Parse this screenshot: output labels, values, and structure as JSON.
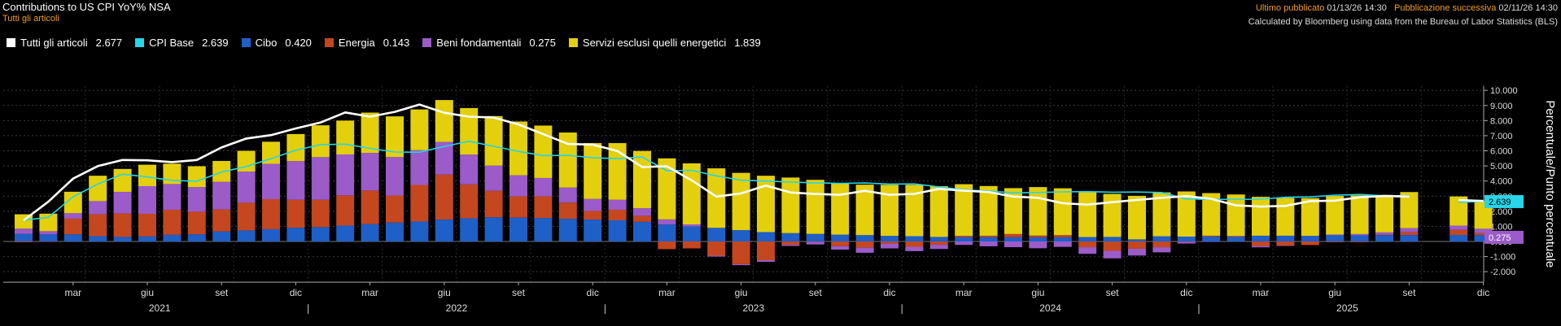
{
  "header": {
    "title": "Contributions to US CPI YoY% NSA",
    "subtitle": "Tutti gli articoli",
    "last_published_label": "Ultimo pubblicato",
    "last_published_value": "01/13/26 14:30",
    "next_publication_label": "Pubblicazione successiva",
    "next_publication_value": "02/11/26 14:30",
    "source_note": "Calculated by Bloomberg using data from the Bureau of Labor Statistics (BLS)"
  },
  "legend": [
    {
      "name": "Tutti gli articoli",
      "value": "2.677",
      "color": "#ffffff"
    },
    {
      "name": "CPI Base",
      "value": "2.639",
      "color": "#25d5e8"
    },
    {
      "name": "Cibo",
      "value": "0.420",
      "color": "#1f5fc8"
    },
    {
      "name": "Energia",
      "value": "0.143",
      "color": "#c4471f"
    },
    {
      "name": "Beni fondamentali",
      "value": "0.275",
      "color": "#9b5bc8"
    },
    {
      "name": "Servizi esclusi quelli energetici",
      "value": "1.839",
      "color": "#e3cf0c"
    }
  ],
  "chart_data": {
    "type": "bar",
    "stacked": true,
    "ylabel": "Percentuale/Punto percentuale",
    "ylim": [
      -2.7,
      10.3
    ],
    "yticks": [
      "-2.000",
      "-1.000",
      "0.000",
      "1.000",
      "2.000",
      "3.000",
      "4.000",
      "5.000",
      "6.000",
      "7.000",
      "8.000",
      "9.000",
      "10.000"
    ],
    "grid": true,
    "legend_position": "top-left",
    "x": [
      "2021-01",
      "2021-02",
      "2021-03",
      "2021-04",
      "2021-05",
      "2021-06",
      "2021-07",
      "2021-08",
      "2021-09",
      "2021-10",
      "2021-11",
      "2021-12",
      "2022-01",
      "2022-02",
      "2022-03",
      "2022-04",
      "2022-05",
      "2022-06",
      "2022-07",
      "2022-08",
      "2022-09",
      "2022-10",
      "2022-11",
      "2022-12",
      "2023-01",
      "2023-02",
      "2023-03",
      "2023-04",
      "2023-05",
      "2023-06",
      "2023-07",
      "2023-08",
      "2023-09",
      "2023-10",
      "2023-11",
      "2023-12",
      "2024-01",
      "2024-02",
      "2024-03",
      "2024-04",
      "2024-05",
      "2024-06",
      "2024-07",
      "2024-08",
      "2024-09",
      "2024-10",
      "2024-11",
      "2024-12",
      "2025-01",
      "2025-02",
      "2025-03",
      "2025-04",
      "2025-05",
      "2025-06",
      "2025-07",
      "2025-08",
      "2025-09",
      "2025-10",
      "2025-11",
      "2025-12"
    ],
    "x_tick_labels": [
      "mar",
      "giu",
      "set",
      "dic",
      "mar",
      "giu",
      "set",
      "dic",
      "mar",
      "giu",
      "set",
      "dic",
      "mar",
      "giu",
      "set",
      "dic",
      "mar",
      "giu",
      "set",
      "dic"
    ],
    "x_tick_months": [
      "2021-03",
      "2021-06",
      "2021-09",
      "2021-12",
      "2022-03",
      "2022-06",
      "2022-09",
      "2022-12",
      "2023-03",
      "2023-06",
      "2023-09",
      "2023-12",
      "2024-03",
      "2024-06",
      "2024-09",
      "2024-12",
      "2025-03",
      "2025-06",
      "2025-09",
      "2025-12"
    ],
    "year_labels": [
      "2021",
      "2022",
      "2023",
      "2024",
      "2025"
    ],
    "series": [
      {
        "name": "Cibo",
        "values": [
          0.5,
          0.47,
          0.47,
          0.35,
          0.3,
          0.33,
          0.44,
          0.47,
          0.66,
          0.73,
          0.81,
          0.91,
          0.95,
          1.05,
          1.15,
          1.25,
          1.32,
          1.45,
          1.53,
          1.6,
          1.58,
          1.55,
          1.5,
          1.45,
          1.4,
          1.3,
          1.12,
          0.99,
          0.9,
          0.75,
          0.62,
          0.55,
          0.5,
          0.45,
          0.42,
          0.37,
          0.35,
          0.3,
          0.29,
          0.29,
          0.28,
          0.28,
          0.28,
          0.29,
          0.3,
          0.14,
          0.34,
          0.32,
          0.33,
          0.31,
          0.38,
          0.38,
          0.37,
          0.41,
          0.4,
          0.42,
          0.42,
          null,
          0.43,
          0.42
        ]
      },
      {
        "name": "Energia",
        "values": [
          -0.05,
          -0.03,
          1.04,
          1.45,
          1.55,
          1.5,
          1.66,
          1.5,
          1.46,
          1.83,
          1.99,
          1.85,
          1.81,
          2.0,
          2.22,
          1.79,
          2.42,
          2.98,
          2.25,
          1.75,
          1.4,
          1.44,
          1.07,
          0.57,
          0.7,
          0.4,
          -0.51,
          -0.46,
          -0.94,
          -1.5,
          -1.24,
          -0.22,
          -0.03,
          -0.31,
          -0.41,
          -0.14,
          -0.35,
          -0.22,
          0.08,
          0.09,
          0.21,
          0.11,
          0.14,
          -0.38,
          -0.62,
          -0.48,
          -0.38,
          -0.03,
          0.05,
          0.02,
          -0.3,
          -0.27,
          -0.24,
          -0.05,
          -0.05,
          0.03,
          0.19,
          null,
          0.34,
          0.14
        ]
      },
      {
        "name": "Beni fondamentali",
        "values": [
          0.35,
          0.21,
          0.36,
          0.87,
          1.43,
          1.83,
          1.7,
          1.63,
          1.83,
          2.07,
          2.34,
          2.56,
          2.82,
          2.71,
          2.49,
          2.55,
          2.3,
          2.16,
          1.97,
          1.67,
          1.4,
          1.21,
          1.0,
          0.79,
          0.66,
          0.5,
          0.34,
          0.14,
          -0.06,
          -0.07,
          -0.11,
          -0.08,
          -0.17,
          -0.23,
          -0.34,
          -0.32,
          -0.29,
          -0.28,
          -0.23,
          -0.32,
          -0.38,
          -0.45,
          -0.36,
          -0.44,
          -0.5,
          -0.45,
          -0.34,
          -0.11,
          -0.03,
          0.03,
          -0.09,
          -0.02,
          0.0,
          0.05,
          0.09,
          0.15,
          0.27,
          null,
          0.28,
          0.28
        ]
      },
      {
        "name": "Servizi esclusi quelli energetici",
        "values": [
          0.95,
          1.16,
          1.42,
          1.68,
          1.52,
          1.42,
          1.35,
          1.38,
          1.38,
          1.37,
          1.46,
          1.79,
          2.11,
          2.24,
          2.67,
          2.69,
          2.7,
          2.77,
          3.08,
          3.28,
          3.56,
          3.47,
          3.64,
          3.7,
          3.75,
          3.79,
          4.04,
          4.04,
          3.94,
          3.79,
          3.73,
          3.68,
          3.58,
          3.42,
          3.34,
          3.38,
          3.4,
          3.36,
          3.42,
          3.29,
          3.04,
          3.21,
          3.1,
          3.01,
          2.85,
          2.88,
          2.91,
          2.99,
          2.82,
          2.75,
          2.57,
          2.5,
          2.5,
          2.55,
          2.56,
          2.48,
          2.39,
          null,
          1.93,
          1.84
        ]
      }
    ],
    "line_series": [
      {
        "name": "Tutti gli articoli",
        "values": [
          1.4,
          2.63,
          4.16,
          4.99,
          5.39,
          5.37,
          5.25,
          5.39,
          6.22,
          6.81,
          7.04,
          7.48,
          7.87,
          8.54,
          8.26,
          8.58,
          9.06,
          8.52,
          8.26,
          8.2,
          7.75,
          7.11,
          6.45,
          6.41,
          5.99,
          4.93,
          4.98,
          4.05,
          2.97,
          3.18,
          3.7,
          3.24,
          3.14,
          3.09,
          3.35,
          3.09,
          3.15,
          3.48,
          3.36,
          3.27,
          2.97,
          2.89,
          2.53,
          2.44,
          2.6,
          2.75,
          2.89,
          3.0,
          2.82,
          2.39,
          2.31,
          2.35,
          2.67,
          2.7,
          2.92,
          3.01,
          2.97,
          null,
          2.74,
          2.68
        ]
      },
      {
        "name": "CPI Base",
        "values": [
          1.4,
          1.6,
          2.96,
          3.8,
          4.45,
          4.27,
          4.04,
          3.99,
          4.59,
          4.96,
          5.48,
          6.04,
          6.41,
          6.44,
          6.16,
          5.92,
          5.91,
          6.29,
          6.63,
          6.3,
          5.96,
          5.68,
          5.7,
          5.55,
          5.48,
          5.59,
          4.68,
          4.71,
          4.34,
          4.05,
          4.0,
          3.93,
          3.88,
          3.85,
          3.87,
          3.8,
          3.81,
          3.61,
          3.41,
          3.33,
          3.22,
          3.24,
          3.28,
          3.3,
          3.26,
          3.27,
          3.24,
          2.81,
          2.79,
          2.78,
          2.8,
          2.92,
          2.95,
          3.06,
          3.11,
          3.02,
          3.03,
          null,
          2.6,
          2.64
        ]
      }
    ],
    "right_labels": [
      {
        "value": "2.639",
        "y": 2.639,
        "color": "#25d5e8",
        "text_color": "#000000"
      },
      {
        "value": "0.275",
        "y": 0.275,
        "color": "#9b5bc8",
        "text_color": "#ffffff"
      }
    ]
  }
}
